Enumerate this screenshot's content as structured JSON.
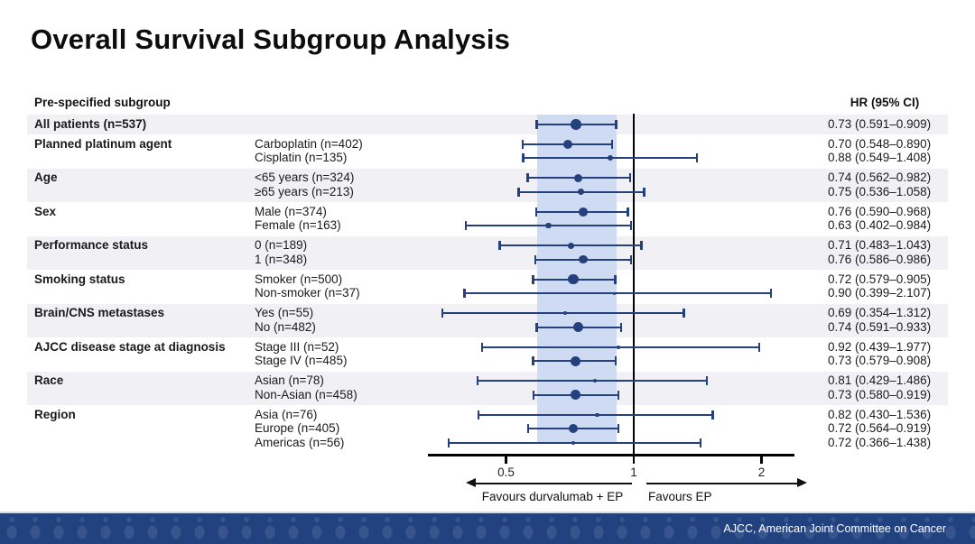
{
  "slide": {
    "title": "Overall Survival Subgroup Analysis",
    "footer": "AJCC, American Joint Committee on Cancer"
  },
  "table": {
    "col_subgroup_header": "Pre-specified subgroup",
    "col_hr_header": "HR (95% CI)"
  },
  "chart_data": {
    "type": "forest",
    "x_scale": "log",
    "x_axis_range": [
      0.33,
      2.4
    ],
    "reference_line": 1,
    "x_ticks": [
      {
        "value": 0.5,
        "label": "0.5"
      },
      {
        "value": 1,
        "label": "1"
      },
      {
        "value": 2,
        "label": "2"
      }
    ],
    "overall_band": {
      "low": 0.591,
      "high": 0.909
    },
    "left_arrow_label": "Favours durvalumab + EP",
    "right_arrow_label": "Favours EP",
    "colors": {
      "marker": "#24417e",
      "overall_band": "#cfdbf2",
      "row_stripe": "#f1f1f5",
      "reference_line": "#000000",
      "footer_bar": "#21417f"
    },
    "groups": [
      {
        "name": "All patients (n=537)",
        "rows": [
          {
            "label": "",
            "n": 537,
            "hr": 0.73,
            "lo": 0.591,
            "hi": 0.909,
            "hr_text": "0.73 (0.591–0.909)"
          }
        ]
      },
      {
        "name": "Planned platinum agent",
        "rows": [
          {
            "label": "Carboplatin (n=402)",
            "n": 402,
            "hr": 0.7,
            "lo": 0.548,
            "hi": 0.89,
            "hr_text": "0.70 (0.548–0.890)"
          },
          {
            "label": "Cisplatin (n=135)",
            "n": 135,
            "hr": 0.88,
            "lo": 0.549,
            "hi": 1.408,
            "hr_text": "0.88 (0.549–1.408)"
          }
        ]
      },
      {
        "name": "Age",
        "rows": [
          {
            "label": "<65 years (n=324)",
            "n": 324,
            "hr": 0.74,
            "lo": 0.562,
            "hi": 0.982,
            "hr_text": "0.74 (0.562–0.982)"
          },
          {
            "label": "≥65 years (n=213)",
            "n": 213,
            "hr": 0.75,
            "lo": 0.536,
            "hi": 1.058,
            "hr_text": "0.75 (0.536–1.058)"
          }
        ]
      },
      {
        "name": "Sex",
        "rows": [
          {
            "label": "Male (n=374)",
            "n": 374,
            "hr": 0.76,
            "lo": 0.59,
            "hi": 0.968,
            "hr_text": "0.76 (0.590–0.968)"
          },
          {
            "label": "Female (n=163)",
            "n": 163,
            "hr": 0.63,
            "lo": 0.402,
            "hi": 0.984,
            "hr_text": "0.63 (0.402–0.984)"
          }
        ]
      },
      {
        "name": "Performance status",
        "rows": [
          {
            "label": "0 (n=189)",
            "n": 189,
            "hr": 0.71,
            "lo": 0.483,
            "hi": 1.043,
            "hr_text": "0.71 (0.483–1.043)"
          },
          {
            "label": "1 (n=348)",
            "n": 348,
            "hr": 0.76,
            "lo": 0.586,
            "hi": 0.986,
            "hr_text": "0.76 (0.586–0.986)"
          }
        ]
      },
      {
        "name": "Smoking status",
        "rows": [
          {
            "label": "Smoker (n=500)",
            "n": 500,
            "hr": 0.72,
            "lo": 0.579,
            "hi": 0.905,
            "hr_text": "0.72 (0.579–0.905)"
          },
          {
            "label": "Non-smoker (n=37)",
            "n": 37,
            "hr": 0.9,
            "lo": 0.399,
            "hi": 2.107,
            "hr_text": "0.90 (0.399–2.107)"
          }
        ]
      },
      {
        "name": "Brain/CNS metastases",
        "rows": [
          {
            "label": "Yes (n=55)",
            "n": 55,
            "hr": 0.69,
            "lo": 0.354,
            "hi": 1.312,
            "hr_text": "0.69 (0.354–1.312)"
          },
          {
            "label": "No (n=482)",
            "n": 482,
            "hr": 0.74,
            "lo": 0.591,
            "hi": 0.933,
            "hr_text": "0.74 (0.591–0.933)"
          }
        ]
      },
      {
        "name": "AJCC disease stage at diagnosis",
        "rows": [
          {
            "label": "Stage III (n=52)",
            "n": 52,
            "hr": 0.92,
            "lo": 0.439,
            "hi": 1.977,
            "hr_text": "0.92 (0.439–1.977)"
          },
          {
            "label": "Stage IV (n=485)",
            "n": 485,
            "hr": 0.73,
            "lo": 0.579,
            "hi": 0.908,
            "hr_text": "0.73 (0.579–0.908)"
          }
        ]
      },
      {
        "name": "Race",
        "rows": [
          {
            "label": "Asian (n=78)",
            "n": 78,
            "hr": 0.81,
            "lo": 0.429,
            "hi": 1.486,
            "hr_text": "0.81 (0.429–1.486)"
          },
          {
            "label": "Non-Asian (n=458)",
            "n": 458,
            "hr": 0.73,
            "lo": 0.58,
            "hi": 0.919,
            "hr_text": "0.73 (0.580–0.919)"
          }
        ]
      },
      {
        "name": "Region",
        "rows": [
          {
            "label": "Asia (n=76)",
            "n": 76,
            "hr": 0.82,
            "lo": 0.43,
            "hi": 1.536,
            "hr_text": "0.82 (0.430–1.536)"
          },
          {
            "label": "Europe (n=405)",
            "n": 405,
            "hr": 0.72,
            "lo": 0.564,
            "hi": 0.919,
            "hr_text": "0.72 (0.564–0.919)"
          },
          {
            "label": "Americas (n=56)",
            "n": 56,
            "hr": 0.72,
            "lo": 0.366,
            "hi": 1.438,
            "hr_text": "0.72 (0.366–1.438)"
          }
        ]
      }
    ]
  }
}
